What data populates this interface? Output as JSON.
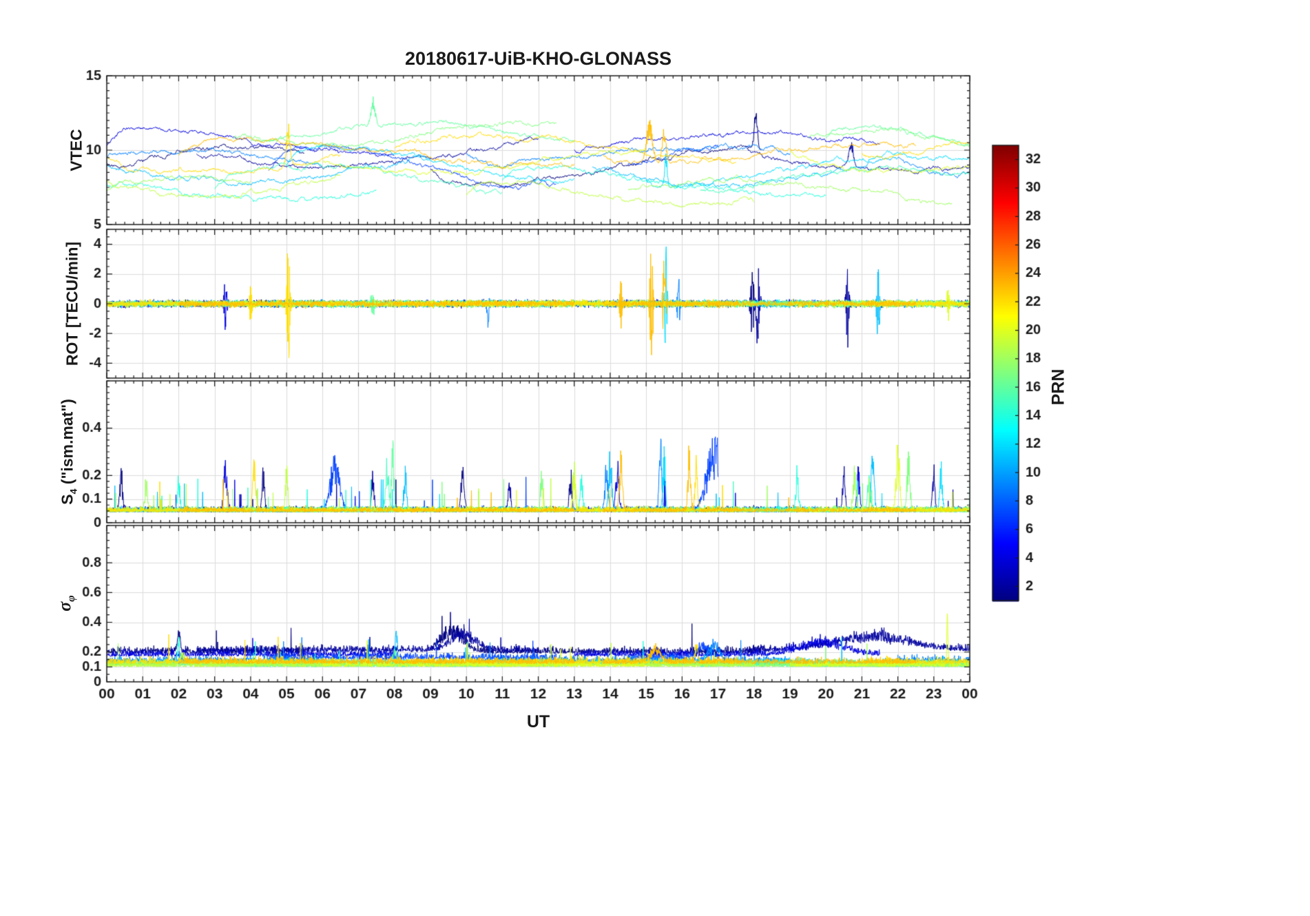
{
  "chart_data": {
    "type": "line",
    "title": "20180617-UiB-KHO-GLONASS",
    "xlabel": "UT",
    "xlim": [
      0,
      24
    ],
    "grid": true,
    "x_tick_vals": [
      0,
      1,
      2,
      3,
      4,
      5,
      6,
      7,
      8,
      9,
      10,
      11,
      12,
      13,
      14,
      15,
      16,
      17,
      18,
      19,
      20,
      21,
      22,
      23,
      24
    ],
    "x_ticks": [
      "00",
      "01",
      "02",
      "03",
      "04",
      "05",
      "06",
      "07",
      "08",
      "09",
      "10",
      "11",
      "12",
      "13",
      "14",
      "15",
      "16",
      "17",
      "18",
      "19",
      "20",
      "21",
      "22",
      "23",
      "00"
    ],
    "colorbar": {
      "label": "PRN",
      "colormap": "jet",
      "lim": [
        1,
        33
      ],
      "ticks": [
        2,
        4,
        6,
        8,
        10,
        12,
        14,
        16,
        18,
        20,
        22,
        24,
        26,
        28,
        30,
        32
      ]
    },
    "panels": [
      {
        "ylabel": "VTEC",
        "ylim": [
          5,
          15
        ],
        "yticks": [
          5,
          10,
          15
        ],
        "ytick_labels": [
          "5",
          "10",
          "15"
        ],
        "yminor": 0.5
      },
      {
        "ylabel": "ROT [TECU/min]",
        "ylim": [
          -5,
          5
        ],
        "yticks": [
          -4,
          -2,
          0,
          2,
          4
        ],
        "ytick_labels": [
          "-4",
          "-2",
          "0",
          "2",
          "4"
        ],
        "yminor": 0.5
      },
      {
        "ylabel": "S_4 (\"ism.mat\")",
        "ylabel_main": "S",
        "ylabel_sub": "4",
        "ylabel_rest": " (\"ism.mat\")",
        "ylim": [
          0,
          0.6
        ],
        "yticks": [
          0,
          0.1,
          0.2,
          0.4
        ],
        "ytick_labels": [
          "0",
          "0.1",
          "0.2",
          "0.4"
        ],
        "yminor": 0.025
      },
      {
        "ylabel": "sigma_phi",
        "ylabel_main": "σ",
        "ylabel_sub": "φ",
        "ylim": [
          0,
          1.05
        ],
        "yticks": [
          0,
          0.1,
          0.2,
          0.4,
          0.6,
          0.8
        ],
        "ytick_labels": [
          "0",
          "0.1",
          "0.2",
          "0.4",
          "0.6",
          "0.8"
        ],
        "yminor": 0.05
      }
    ],
    "axis_color": "#1a1a1a",
    "grid_color": "#dcdcdc",
    "series": [
      {
        "prn": 1,
        "seed": 11,
        "arcs": [
          [
            0,
            5.5
          ],
          [
            9.0,
            18.2
          ]
        ],
        "vtec": {
          "base": 9.0,
          "amp": 1.2,
          "period": 14,
          "phase": 0.0
        },
        "vtec_spikes": [
          [
            18.05,
            2.3,
            0.06
          ]
        ],
        "rot_spikes": [
          [
            17.95,
            2.0,
            0.05
          ]
        ],
        "s4_spikes": [
          [
            0.4,
            0.2,
            0.05
          ],
          [
            4.35,
            0.18,
            0.05
          ],
          [
            9.9,
            0.22,
            0.06
          ],
          [
            12.9,
            0.18,
            0.05
          ]
        ],
        "sigma_base": 0.19,
        "sigma_spikes": [
          [
            2.0,
            0.14,
            0.06
          ],
          [
            9.6,
            0.17,
            0.45
          ]
        ]
      },
      {
        "prn": 2,
        "seed": 22,
        "arcs": [
          [
            2.5,
            12.0
          ],
          [
            17.8,
            24
          ]
        ],
        "vtec": {
          "base": 9.8,
          "amp": 1.0,
          "period": 16,
          "phase": 2.5
        },
        "vtec_spikes": [
          [
            20.7,
            1.4,
            0.08
          ]
        ],
        "rot_spikes": [
          [
            18.1,
            2.3,
            0.06
          ],
          [
            20.6,
            2.5,
            0.05
          ]
        ],
        "s4_spikes": [
          [
            7.4,
            0.16,
            0.05
          ],
          [
            11.2,
            0.14,
            0.05
          ],
          [
            20.5,
            0.2,
            0.05
          ],
          [
            23.0,
            0.18,
            0.05
          ]
        ],
        "sigma_base": 0.2,
        "sigma_spikes": [
          [
            9.9,
            0.13,
            0.5
          ],
          [
            21.3,
            0.11,
            1.5
          ]
        ]
      },
      {
        "prn": 4,
        "seed": 44,
        "arcs": [
          [
            0,
            8.0
          ],
          [
            13.0,
            21.5
          ]
        ],
        "vtec": {
          "base": 10.2,
          "amp": 1.0,
          "period": 18,
          "phase": 8.0
        },
        "vtec_spikes": [],
        "rot_spikes": [
          [
            3.3,
            1.4,
            0.05
          ]
        ],
        "s4_spikes": [
          [
            3.3,
            0.2,
            0.07
          ],
          [
            14.2,
            0.22,
            0.06
          ],
          [
            20.9,
            0.2,
            0.05
          ]
        ],
        "sigma_base": 0.17,
        "sigma_spikes": [
          [
            19.9,
            0.1,
            0.9
          ]
        ]
      },
      {
        "prn": 7,
        "seed": 77,
        "arcs": [
          [
            4.5,
            12.5
          ],
          [
            14.5,
            17.0
          ]
        ],
        "vtec": {
          "base": 9.0,
          "amp": 1.4,
          "period": 12,
          "phase": 5.0
        },
        "vtec_spikes": [],
        "rot_spikes": [],
        "s4_spikes": [
          [
            6.35,
            0.24,
            0.18
          ],
          [
            16.9,
            0.3,
            0.3
          ]
        ],
        "sigma_base": 0.15,
        "sigma_spikes": [
          [
            16.6,
            0.1,
            0.25
          ]
        ]
      },
      {
        "prn": 9,
        "seed": 99,
        "arcs": [
          [
            0,
            6.0
          ],
          [
            10.0,
            19.0
          ],
          [
            22.0,
            24
          ]
        ],
        "vtec": {
          "base": 9.5,
          "amp": 0.8,
          "period": 15,
          "phase": 1.0
        },
        "vtec_spikes": [],
        "rot_spikes": [
          [
            10.6,
            1.4,
            0.04
          ],
          [
            15.9,
            1.8,
            0.04
          ]
        ],
        "s4_spikes": [
          [
            13.9,
            0.24,
            0.06
          ],
          [
            15.4,
            0.32,
            0.05
          ]
        ],
        "sigma_base": 0.13,
        "sigma_spikes": [
          [
            16.9,
            0.12,
            0.2
          ]
        ]
      },
      {
        "prn": 11,
        "seed": 111,
        "arcs": [
          [
            0,
            9.0
          ],
          [
            13.5,
            22.0
          ]
        ],
        "vtec": {
          "base": 8.3,
          "amp": 1.0,
          "period": 13,
          "phase": 3.0
        },
        "vtec_spikes": [],
        "rot_spikes": [
          [
            21.45,
            2.2,
            0.05
          ]
        ],
        "s4_spikes": [
          [
            8.3,
            0.18,
            0.05
          ],
          [
            14.0,
            0.26,
            0.06
          ],
          [
            21.3,
            0.26,
            0.06
          ]
        ],
        "sigma_base": 0.11,
        "sigma_spikes": [
          [
            8.05,
            0.22,
            0.05
          ]
        ]
      },
      {
        "prn": 12,
        "seed": 122,
        "arcs": [
          [
            5.0,
            13.0
          ],
          [
            15.0,
            24
          ]
        ],
        "vtec": {
          "base": 8.8,
          "amp": 1.2,
          "period": 17,
          "phase": 6.0
        },
        "vtec_spikes": [
          [
            15.55,
            1.8,
            0.05
          ]
        ],
        "rot_spikes": [
          [
            15.55,
            3.2,
            0.04
          ]
        ],
        "s4_spikes": [
          [
            15.5,
            0.28,
            0.05
          ],
          [
            23.2,
            0.2,
            0.05
          ]
        ],
        "sigma_base": 0.11,
        "sigma_spikes": []
      },
      {
        "prn": 14,
        "seed": 144,
        "arcs": [
          [
            0,
            7.5
          ],
          [
            11.0,
            20.0
          ]
        ],
        "vtec": {
          "base": 8.0,
          "amp": 0.9,
          "period": 14,
          "phase": 9.0
        },
        "vtec_spikes": [],
        "rot_spikes": [],
        "s4_spikes": [
          [
            2.0,
            0.16,
            0.05
          ],
          [
            13.2,
            0.14,
            0.05
          ],
          [
            19.2,
            0.18,
            0.05
          ]
        ],
        "sigma_base": 0.11,
        "sigma_spikes": [
          [
            2.0,
            0.18,
            0.05
          ]
        ]
      },
      {
        "prn": 15,
        "seed": 155,
        "arcs": [
          [
            3.0,
            11.0
          ],
          [
            16.5,
            24
          ]
        ],
        "vtec": {
          "base": 7.8,
          "amp": 1.3,
          "period": 16,
          "phase": 12.0
        },
        "vtec_spikes": [],
        "rot_spikes": [],
        "s4_spikes": [
          [
            7.8,
            0.24,
            0.06
          ],
          [
            21.2,
            0.16,
            0.06
          ]
        ],
        "sigma_base": 0.1,
        "sigma_spikes": []
      },
      {
        "prn": 16,
        "seed": 166,
        "arcs": [
          [
            4.0,
            13.0
          ],
          [
            20.0,
            24
          ]
        ],
        "vtec": {
          "base": 10.8,
          "amp": 0.9,
          "period": 12,
          "phase": 3.5
        },
        "vtec_spikes": [
          [
            7.4,
            1.6,
            0.09
          ]
        ],
        "rot_spikes": [
          [
            7.4,
            1.2,
            0.05
          ]
        ],
        "s4_spikes": [
          [
            7.95,
            0.3,
            0.05
          ]
        ],
        "sigma_base": 0.1,
        "sigma_spikes": [
          [
            8.0,
            0.12,
            0.06
          ]
        ]
      },
      {
        "prn": 17,
        "seed": 177,
        "arcs": [
          [
            3.5,
            12.5
          ],
          [
            19.5,
            24
          ]
        ],
        "vtec": {
          "base": 11.0,
          "amp": 0.8,
          "period": 10,
          "phase": 1.0
        },
        "vtec_spikes": [],
        "rot_spikes": [],
        "s4_spikes": [
          [
            12.1,
            0.18,
            0.05
          ],
          [
            22.3,
            0.24,
            0.06
          ]
        ],
        "sigma_base": 0.1,
        "sigma_spikes": []
      },
      {
        "prn": 18,
        "seed": 188,
        "arcs": [
          [
            0,
            4.0
          ],
          [
            14.5,
            23.5
          ]
        ],
        "vtec": {
          "base": 7.2,
          "amp": 0.8,
          "period": 15,
          "phase": 7.0
        },
        "vtec_spikes": [],
        "rot_spikes": [],
        "s4_spikes": [
          [
            1.1,
            0.14,
            0.05
          ],
          [
            20.8,
            0.2,
            0.06
          ]
        ],
        "sigma_base": 0.1,
        "sigma_spikes": []
      },
      {
        "prn": 19,
        "seed": 199,
        "arcs": [
          [
            0,
            6.5
          ],
          [
            10.0,
            18.0
          ]
        ],
        "vtec": {
          "base": 7.6,
          "amp": 1.0,
          "period": 14,
          "phase": 10.0
        },
        "vtec_spikes": [],
        "rot_spikes": [],
        "s4_spikes": [
          [
            5.0,
            0.18,
            0.05
          ],
          [
            13.0,
            0.2,
            0.05
          ]
        ],
        "sigma_base": 0.1,
        "sigma_spikes": [
          [
            2.1,
            0.08,
            0.1
          ]
        ]
      },
      {
        "prn": 20,
        "seed": 211,
        "arcs": [
          [
            6.0,
            15.0
          ],
          [
            19.0,
            24
          ]
        ],
        "vtec": {
          "base": 9.6,
          "amp": 0.9,
          "period": 13,
          "phase": 0.5
        },
        "vtec_spikes": [],
        "rot_spikes": [
          [
            23.4,
            1.2,
            0.04
          ]
        ],
        "s4_spikes": [
          [
            13.0,
            0.16,
            0.05
          ],
          [
            22.0,
            0.28,
            0.07
          ]
        ],
        "sigma_base": 0.1,
        "sigma_spikes": [
          [
            23.38,
            0.38,
            0.025
          ]
        ]
      },
      {
        "prn": 22,
        "seed": 222,
        "arcs": [
          [
            0,
            6.5
          ],
          [
            8.0,
            17.5
          ],
          [
            21.0,
            24
          ]
        ],
        "vtec": {
          "base": 9.7,
          "amp": 0.9,
          "period": 16,
          "phase": 4.0
        },
        "vtec_spikes": [
          [
            5.05,
            2.2,
            0.07
          ]
        ],
        "rot_spikes": [
          [
            4.0,
            1.2,
            0.04
          ],
          [
            5.05,
            3.5,
            0.05
          ]
        ],
        "s4_spikes": [
          [
            4.1,
            0.2,
            0.06
          ],
          [
            7.3,
            0.24,
            0.05
          ],
          [
            16.4,
            0.26,
            0.05
          ]
        ],
        "sigma_base": 0.12,
        "sigma_spikes": [
          [
            16.4,
            0.14,
            0.05
          ]
        ]
      },
      {
        "prn": 23,
        "seed": 233,
        "arcs": [
          [
            2.0,
            13.0
          ],
          [
            13.8,
            22.5
          ]
        ],
        "vtec": {
          "base": 10.0,
          "amp": 0.8,
          "period": 18,
          "phase": 13.0
        },
        "vtec_spikes": [
          [
            15.1,
            2.6,
            0.12
          ],
          [
            15.5,
            1.8,
            0.08
          ]
        ],
        "rot_spikes": [
          [
            14.3,
            1.5,
            0.04
          ],
          [
            15.15,
            3.6,
            0.05
          ],
          [
            15.5,
            2.6,
            0.05
          ]
        ],
        "s4_spikes": [
          [
            14.3,
            0.24,
            0.06
          ],
          [
            16.2,
            0.28,
            0.05
          ]
        ],
        "sigma_base": 0.12,
        "sigma_spikes": [
          [
            15.25,
            0.1,
            0.2
          ]
        ]
      }
    ]
  }
}
